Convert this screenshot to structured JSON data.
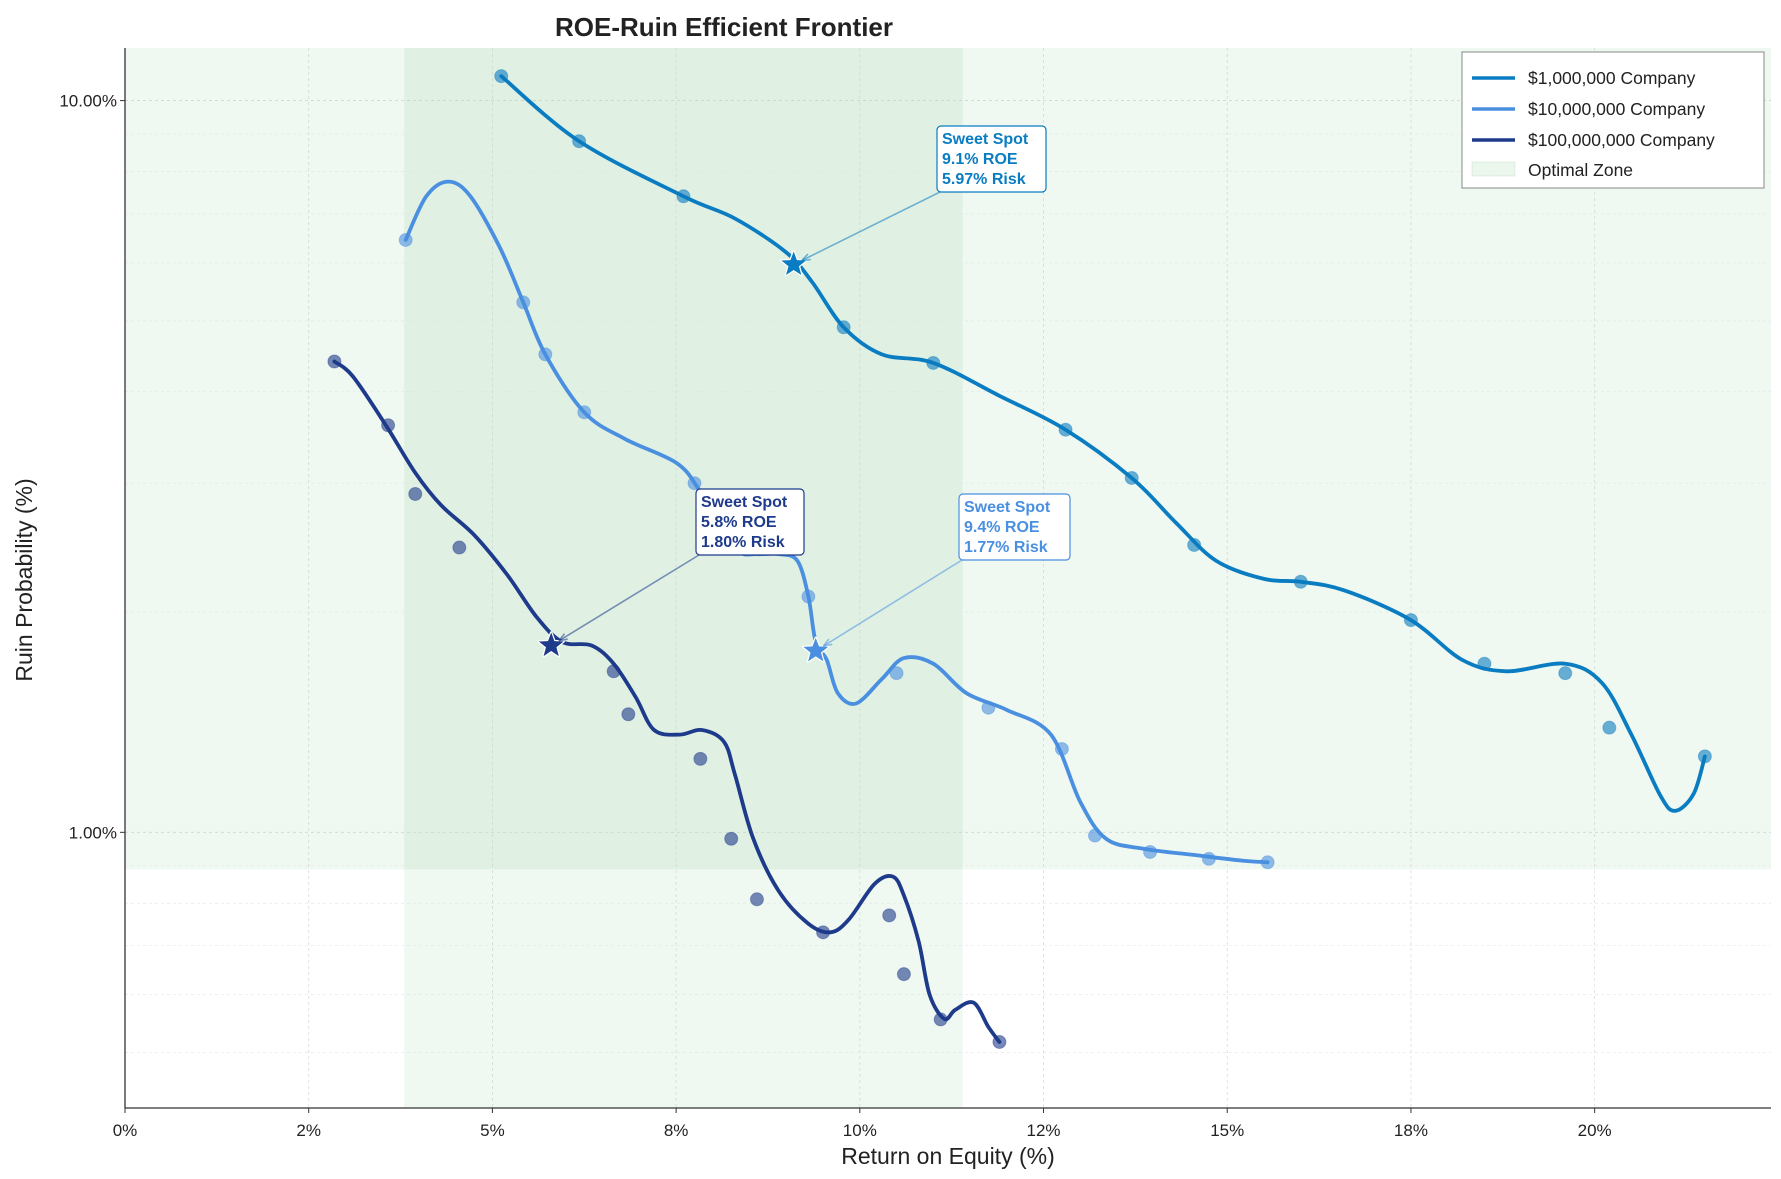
{
  "chart_data": {
    "type": "line",
    "title": "ROE-Ruin Efficient Frontier",
    "xlabel": "Return on Equity (%)",
    "ylabel": "Ruin Probability (%)",
    "xlim": [
      0,
      22.4
    ],
    "ylim_log": [
      0.42,
      11.8
    ],
    "yscale": "log",
    "grid": true,
    "legend_position": "top-right",
    "x_ticks": [
      {
        "value": 0,
        "label": "0%"
      },
      {
        "value": 2.5,
        "label": "2%"
      },
      {
        "value": 5,
        "label": "5%"
      },
      {
        "value": 7.5,
        "label": "8%"
      },
      {
        "value": 10,
        "label": "10%"
      },
      {
        "value": 12.5,
        "label": "12%"
      },
      {
        "value": 15,
        "label": "15%"
      },
      {
        "value": 17.5,
        "label": "18%"
      },
      {
        "value": 20,
        "label": "20%"
      }
    ],
    "y_ticks": [
      {
        "value": 1,
        "label": "1.00%"
      },
      {
        "value": 10,
        "label": "10.00%"
      }
    ],
    "optimal_zone": {
      "label": "Optimal Zone",
      "x_range": [
        3.8,
        11.4
      ],
      "y_range": [
        0.89,
        11.8
      ],
      "color": "#2e9e44"
    },
    "series": [
      {
        "name": "$1,000,000 Company",
        "color": "#0a7cc1",
        "points": [
          [
            5.12,
            10.8
          ],
          [
            6.18,
            8.8
          ],
          [
            7.6,
            7.4
          ],
          [
            8.3,
            6.9
          ],
          [
            9.0,
            6.2
          ],
          [
            9.35,
            5.65
          ],
          [
            9.78,
            4.9
          ],
          [
            10.3,
            4.5
          ],
          [
            11.0,
            4.38
          ],
          [
            11.9,
            3.95
          ],
          [
            12.8,
            3.55
          ],
          [
            13.7,
            3.05
          ],
          [
            14.3,
            2.65
          ],
          [
            14.85,
            2.35
          ],
          [
            15.5,
            2.22
          ],
          [
            16.0,
            2.2
          ],
          [
            16.6,
            2.14
          ],
          [
            17.5,
            1.95
          ],
          [
            18.2,
            1.72
          ],
          [
            18.8,
            1.66
          ],
          [
            19.6,
            1.7
          ],
          [
            20.1,
            1.6
          ],
          [
            20.5,
            1.36
          ],
          [
            20.9,
            1.12
          ],
          [
            21.1,
            1.07
          ],
          [
            21.35,
            1.13
          ],
          [
            21.5,
            1.27
          ]
        ],
        "markers": [
          [
            5.12,
            10.8
          ],
          [
            6.18,
            8.8
          ],
          [
            7.6,
            7.4
          ],
          [
            9.78,
            4.9
          ],
          [
            11.0,
            4.38
          ],
          [
            12.8,
            3.55
          ],
          [
            13.7,
            3.05
          ],
          [
            14.55,
            2.47
          ],
          [
            16.0,
            2.2
          ],
          [
            17.5,
            1.95
          ],
          [
            18.5,
            1.7
          ],
          [
            19.6,
            1.65
          ],
          [
            20.2,
            1.39
          ],
          [
            21.5,
            1.27
          ]
        ],
        "sweet_spot": {
          "roe": 9.1,
          "risk": 5.97,
          "x": 9.1,
          "y": 5.97,
          "label": "Sweet Spot",
          "roe_text": "9.1% ROE",
          "risk_text": "5.97% Risk"
        }
      },
      {
        "name": "$10,000,000 Company",
        "color": "#4a8fe0",
        "points": [
          [
            3.82,
            6.45
          ],
          [
            4.1,
            7.4
          ],
          [
            4.4,
            7.75
          ],
          [
            4.7,
            7.4
          ],
          [
            5.1,
            6.3
          ],
          [
            5.42,
            5.3
          ],
          [
            5.72,
            4.5
          ],
          [
            6.25,
            3.75
          ],
          [
            6.8,
            3.45
          ],
          [
            7.5,
            3.2
          ],
          [
            7.8,
            2.95
          ],
          [
            8.05,
            2.65
          ],
          [
            8.35,
            2.42
          ],
          [
            8.6,
            2.4
          ],
          [
            8.9,
            2.4
          ],
          [
            9.15,
            2.35
          ],
          [
            9.3,
            2.1
          ],
          [
            9.4,
            1.82
          ],
          [
            9.55,
            1.72
          ],
          [
            9.7,
            1.55
          ],
          [
            9.95,
            1.5
          ],
          [
            10.3,
            1.62
          ],
          [
            10.6,
            1.73
          ],
          [
            11.0,
            1.7
          ],
          [
            11.45,
            1.55
          ],
          [
            12.0,
            1.47
          ],
          [
            12.6,
            1.36
          ],
          [
            13.0,
            1.1
          ],
          [
            13.35,
            0.98
          ],
          [
            13.85,
            0.95
          ],
          [
            14.6,
            0.93
          ],
          [
            15.2,
            0.915
          ],
          [
            15.55,
            0.91
          ]
        ],
        "markers": [
          [
            3.82,
            6.45
          ],
          [
            5.42,
            5.3
          ],
          [
            5.72,
            4.5
          ],
          [
            6.25,
            3.75
          ],
          [
            7.75,
            3.0
          ],
          [
            7.98,
            2.72
          ],
          [
            9.3,
            2.1
          ],
          [
            10.5,
            1.65
          ],
          [
            11.75,
            1.48
          ],
          [
            12.75,
            1.3
          ],
          [
            13.2,
            0.99
          ],
          [
            13.95,
            0.94
          ],
          [
            14.75,
            0.92
          ],
          [
            15.55,
            0.91
          ]
        ],
        "sweet_spot": {
          "roe": 9.4,
          "risk": 1.77,
          "x": 9.4,
          "y": 1.77,
          "label": "Sweet Spot",
          "roe_text": "9.4% ROE",
          "risk_text": "1.77% Risk"
        }
      },
      {
        "name": "$100,000,000 Company",
        "color": "#1e3a8a",
        "points": [
          [
            2.85,
            4.4
          ],
          [
            3.1,
            4.2
          ],
          [
            3.55,
            3.6
          ],
          [
            3.95,
            3.1
          ],
          [
            4.3,
            2.8
          ],
          [
            4.75,
            2.55
          ],
          [
            5.2,
            2.25
          ],
          [
            5.6,
            1.97
          ],
          [
            5.95,
            1.82
          ],
          [
            6.35,
            1.8
          ],
          [
            6.65,
            1.7
          ],
          [
            6.95,
            1.53
          ],
          [
            7.2,
            1.38
          ],
          [
            7.55,
            1.36
          ],
          [
            7.85,
            1.38
          ],
          [
            8.15,
            1.33
          ],
          [
            8.3,
            1.2
          ],
          [
            8.55,
            0.98
          ],
          [
            8.9,
            0.83
          ],
          [
            9.3,
            0.75
          ],
          [
            9.6,
            0.73
          ],
          [
            9.85,
            0.76
          ],
          [
            10.2,
            0.85
          ],
          [
            10.45,
            0.87
          ],
          [
            10.6,
            0.82
          ],
          [
            10.8,
            0.71
          ],
          [
            10.95,
            0.6
          ],
          [
            11.15,
            0.556
          ],
          [
            11.3,
            0.572
          ],
          [
            11.55,
            0.585
          ],
          [
            11.75,
            0.542
          ],
          [
            11.9,
            0.517
          ]
        ],
        "markers": [
          [
            2.85,
            4.4
          ],
          [
            3.58,
            3.6
          ],
          [
            3.95,
            2.9
          ],
          [
            4.55,
            2.45
          ],
          [
            6.65,
            1.66
          ],
          [
            6.85,
            1.45
          ],
          [
            7.83,
            1.26
          ],
          [
            8.25,
            0.98
          ],
          [
            8.6,
            0.81
          ],
          [
            9.5,
            0.73
          ],
          [
            10.4,
            0.77
          ],
          [
            10.6,
            0.64
          ],
          [
            11.1,
            0.555
          ],
          [
            11.9,
            0.517
          ]
        ],
        "sweet_spot": {
          "roe": 5.8,
          "risk": 1.8,
          "x": 5.8,
          "y": 1.8,
          "label": "Sweet Spot",
          "roe_text": "5.8% ROE",
          "risk_text": "1.80% Risk"
        }
      }
    ]
  }
}
